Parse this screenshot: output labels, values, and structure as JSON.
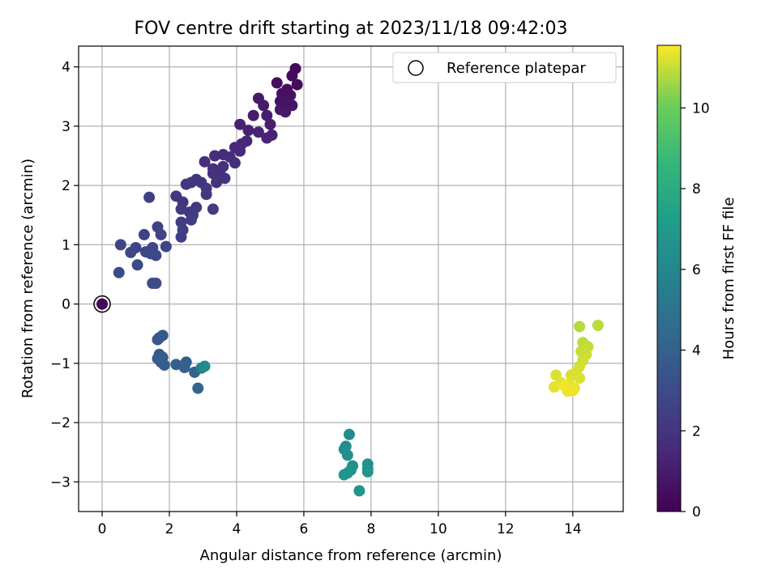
{
  "chart_data": {
    "type": "scatter",
    "title": "FOV centre drift starting at 2023/11/18 09:42:03",
    "xlabel": "Angular distance from reference (arcmin)",
    "ylabel": "Rotation from reference (arcmin)",
    "xlim": [
      -0.7,
      15.5
    ],
    "ylim": [
      -3.5,
      4.35
    ],
    "xticks": [
      0,
      2,
      4,
      6,
      8,
      10,
      12,
      14
    ],
    "yticks": [
      -3,
      -2,
      -1,
      0,
      1,
      2,
      3,
      4
    ],
    "grid": true,
    "legend": {
      "position": "top-right",
      "entries": [
        "Reference platepar"
      ]
    },
    "colorbar": {
      "label": "Hours from first FF file",
      "range": [
        0,
        11.55
      ],
      "ticks": [
        0,
        2,
        4,
        6,
        8,
        10
      ],
      "colormap": "viridis"
    },
    "reference_point": {
      "x": 0,
      "y": 0
    },
    "series": [
      {
        "points": [
          {
            "x": 0,
            "y": 0,
            "c": 0.2
          },
          {
            "x": 5.75,
            "y": 3.97,
            "c": 0.3
          },
          {
            "x": 5.65,
            "y": 3.85,
            "c": 0.35
          },
          {
            "x": 5.8,
            "y": 3.7,
            "c": 0.4
          },
          {
            "x": 5.2,
            "y": 3.73,
            "c": 0.45
          },
          {
            "x": 5.5,
            "y": 3.62,
            "c": 0.5
          },
          {
            "x": 5.35,
            "y": 3.55,
            "c": 0.55
          },
          {
            "x": 5.6,
            "y": 3.52,
            "c": 0.6
          },
          {
            "x": 5.3,
            "y": 3.42,
            "c": 0.65
          },
          {
            "x": 5.55,
            "y": 3.4,
            "c": 0.7
          },
          {
            "x": 5.65,
            "y": 3.35,
            "c": 0.75
          },
          {
            "x": 5.3,
            "y": 3.28,
            "c": 0.8
          },
          {
            "x": 5.45,
            "y": 3.24,
            "c": 0.85
          },
          {
            "x": 4.65,
            "y": 3.47,
            "c": 0.9
          },
          {
            "x": 4.8,
            "y": 3.35,
            "c": 0.95
          },
          {
            "x": 4.5,
            "y": 3.18,
            "c": 1.0
          },
          {
            "x": 4.9,
            "y": 3.18,
            "c": 1.05
          },
          {
            "x": 5.0,
            "y": 3.03,
            "c": 1.1
          },
          {
            "x": 4.1,
            "y": 3.03,
            "c": 1.15
          },
          {
            "x": 4.35,
            "y": 2.93,
            "c": 1.2
          },
          {
            "x": 4.65,
            "y": 2.9,
            "c": 1.25
          },
          {
            "x": 5.05,
            "y": 2.85,
            "c": 1.3
          },
          {
            "x": 4.9,
            "y": 2.8,
            "c": 1.35
          },
          {
            "x": 4.3,
            "y": 2.75,
            "c": 1.4
          },
          {
            "x": 4.15,
            "y": 2.7,
            "c": 1.45
          },
          {
            "x": 3.95,
            "y": 2.64,
            "c": 1.5
          },
          {
            "x": 4.1,
            "y": 2.58,
            "c": 1.55
          },
          {
            "x": 3.6,
            "y": 2.52,
            "c": 1.6
          },
          {
            "x": 3.35,
            "y": 2.5,
            "c": 1.65
          },
          {
            "x": 3.8,
            "y": 2.48,
            "c": 1.7
          },
          {
            "x": 3.05,
            "y": 2.4,
            "c": 1.75
          },
          {
            "x": 3.95,
            "y": 2.38,
            "c": 1.8
          },
          {
            "x": 3.6,
            "y": 2.32,
            "c": 1.82
          },
          {
            "x": 3.3,
            "y": 2.28,
            "c": 1.85
          },
          {
            "x": 3.5,
            "y": 2.22,
            "c": 1.87
          },
          {
            "x": 3.3,
            "y": 2.2,
            "c": 1.9
          },
          {
            "x": 3.65,
            "y": 2.12,
            "c": 1.92
          },
          {
            "x": 2.8,
            "y": 2.1,
            "c": 1.95
          },
          {
            "x": 3.4,
            "y": 2.05,
            "c": 1.97
          },
          {
            "x": 2.65,
            "y": 2.05,
            "c": 2.0
          },
          {
            "x": 2.95,
            "y": 2.05,
            "c": 2.02
          },
          {
            "x": 2.5,
            "y": 2.02,
            "c": 2.05
          },
          {
            "x": 3.1,
            "y": 1.95,
            "c": 2.07
          },
          {
            "x": 3.1,
            "y": 1.85,
            "c": 2.1
          },
          {
            "x": 2.2,
            "y": 1.82,
            "c": 2.12
          },
          {
            "x": 2.4,
            "y": 1.72,
            "c": 2.15
          },
          {
            "x": 2.8,
            "y": 1.63,
            "c": 2.17
          },
          {
            "x": 2.35,
            "y": 1.6,
            "c": 2.2
          },
          {
            "x": 3.3,
            "y": 1.6,
            "c": 2.22
          },
          {
            "x": 2.6,
            "y": 1.55,
            "c": 2.25
          },
          {
            "x": 2.7,
            "y": 1.5,
            "c": 2.27
          },
          {
            "x": 2.65,
            "y": 1.42,
            "c": 2.3
          },
          {
            "x": 2.35,
            "y": 1.38,
            "c": 2.35
          },
          {
            "x": 2.4,
            "y": 1.25,
            "c": 2.4
          },
          {
            "x": 2.35,
            "y": 1.13,
            "c": 2.45
          },
          {
            "x": 1.4,
            "y": 1.8,
            "c": 2.5
          },
          {
            "x": 1.65,
            "y": 1.3,
            "c": 2.55
          },
          {
            "x": 1.25,
            "y": 1.17,
            "c": 2.6
          },
          {
            "x": 1.75,
            "y": 1.17,
            "c": 2.62
          },
          {
            "x": 0.55,
            "y": 1.0,
            "c": 2.65
          },
          {
            "x": 1.0,
            "y": 0.95,
            "c": 2.7
          },
          {
            "x": 1.9,
            "y": 0.97,
            "c": 2.72
          },
          {
            "x": 1.5,
            "y": 0.95,
            "c": 2.75
          },
          {
            "x": 1.3,
            "y": 0.88,
            "c": 2.77
          },
          {
            "x": 0.85,
            "y": 0.87,
            "c": 2.8
          },
          {
            "x": 1.45,
            "y": 0.85,
            "c": 2.82
          },
          {
            "x": 1.6,
            "y": 0.82,
            "c": 2.85
          },
          {
            "x": 1.05,
            "y": 0.66,
            "c": 2.9
          },
          {
            "x": 0.5,
            "y": 0.53,
            "c": 2.95
          },
          {
            "x": 1.5,
            "y": 0.35,
            "c": 3.0
          },
          {
            "x": 1.6,
            "y": 0.35,
            "c": 3.05
          },
          {
            "x": 1.8,
            "y": -0.53,
            "c": 3.5
          },
          {
            "x": 1.7,
            "y": -0.57,
            "c": 3.55
          },
          {
            "x": 1.65,
            "y": -0.6,
            "c": 3.6
          },
          {
            "x": 1.7,
            "y": -0.85,
            "c": 3.65
          },
          {
            "x": 1.8,
            "y": -0.9,
            "c": 3.7
          },
          {
            "x": 1.65,
            "y": -0.92,
            "c": 3.75
          },
          {
            "x": 1.75,
            "y": -0.98,
            "c": 3.8
          },
          {
            "x": 1.85,
            "y": -1.03,
            "c": 3.85
          },
          {
            "x": 2.2,
            "y": -1.02,
            "c": 3.9
          },
          {
            "x": 2.5,
            "y": -0.98,
            "c": 3.95
          },
          {
            "x": 2.45,
            "y": -1.07,
            "c": 4.0
          },
          {
            "x": 2.75,
            "y": -1.15,
            "c": 4.1
          },
          {
            "x": 2.85,
            "y": -1.42,
            "c": 4.2
          },
          {
            "x": 2.95,
            "y": -1.08,
            "c": 5.6
          },
          {
            "x": 3.05,
            "y": -1.05,
            "c": 6.2
          },
          {
            "x": 7.35,
            "y": -2.2,
            "c": 6.3
          },
          {
            "x": 7.25,
            "y": -2.4,
            "c": 6.35
          },
          {
            "x": 7.2,
            "y": -2.45,
            "c": 6.4
          },
          {
            "x": 7.3,
            "y": -2.55,
            "c": 6.45
          },
          {
            "x": 7.9,
            "y": -2.7,
            "c": 6.5
          },
          {
            "x": 7.45,
            "y": -2.73,
            "c": 6.55
          },
          {
            "x": 7.9,
            "y": -2.78,
            "c": 6.6
          },
          {
            "x": 7.4,
            "y": -2.8,
            "c": 6.65
          },
          {
            "x": 7.9,
            "y": -2.83,
            "c": 6.7
          },
          {
            "x": 7.3,
            "y": -2.85,
            "c": 6.72
          },
          {
            "x": 7.2,
            "y": -2.88,
            "c": 6.75
          },
          {
            "x": 7.65,
            "y": -3.15,
            "c": 6.8
          },
          {
            "x": 14.2,
            "y": -0.38,
            "c": 10.8
          },
          {
            "x": 14.75,
            "y": -0.36,
            "c": 10.85
          },
          {
            "x": 14.3,
            "y": -0.65,
            "c": 10.9
          },
          {
            "x": 14.45,
            "y": -0.72,
            "c": 10.95
          },
          {
            "x": 14.25,
            "y": -0.8,
            "c": 11.0
          },
          {
            "x": 14.4,
            "y": -0.85,
            "c": 11.05
          },
          {
            "x": 14.3,
            "y": -0.95,
            "c": 11.1
          },
          {
            "x": 14.2,
            "y": -1.05,
            "c": 11.12
          },
          {
            "x": 14.1,
            "y": -1.15,
            "c": 11.15
          },
          {
            "x": 13.95,
            "y": -1.2,
            "c": 11.18
          },
          {
            "x": 14.2,
            "y": -1.25,
            "c": 11.2
          },
          {
            "x": 13.5,
            "y": -1.2,
            "c": 11.22
          },
          {
            "x": 13.65,
            "y": -1.33,
            "c": 11.25
          },
          {
            "x": 13.45,
            "y": -1.4,
            "c": 11.28
          },
          {
            "x": 13.9,
            "y": -1.35,
            "c": 11.3
          },
          {
            "x": 14.05,
            "y": -1.42,
            "c": 11.32
          },
          {
            "x": 13.85,
            "y": -1.47,
            "c": 11.35
          },
          {
            "x": 14.0,
            "y": -1.46,
            "c": 11.4
          },
          {
            "x": 13.75,
            "y": -1.38,
            "c": 11.45
          }
        ]
      }
    ]
  }
}
